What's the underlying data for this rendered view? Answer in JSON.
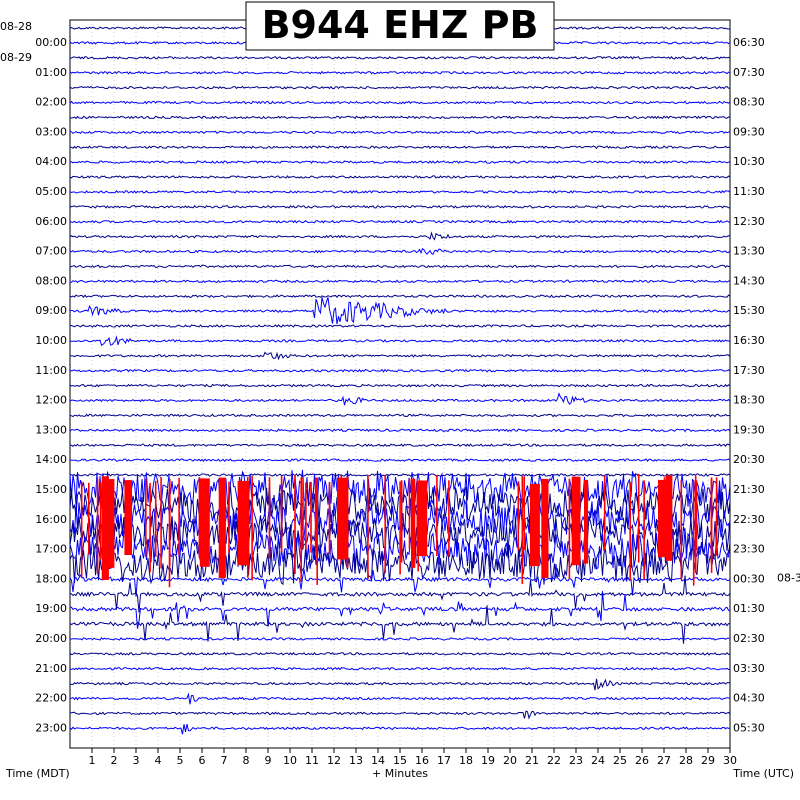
{
  "chart_data": {
    "type": "line",
    "title": "B944 EHZ PB",
    "xlabel": "+ Minutes",
    "left_axis_label": "Time (MDT)",
    "right_axis_label": "Time (UTC)",
    "xlim": [
      0,
      30
    ],
    "x_ticks": [
      "1",
      "2",
      "3",
      "4",
      "5",
      "6",
      "7",
      "8",
      "9",
      "10",
      "11",
      "12",
      "13",
      "14",
      "15",
      "16",
      "17",
      "18",
      "19",
      "20",
      "21",
      "22",
      "23",
      "24",
      "25",
      "26",
      "27",
      "28",
      "29",
      "30"
    ],
    "rows_per_hour": 2,
    "left_dates": [
      {
        "row": 0,
        "text": "08-28"
      },
      {
        "row": 1,
        "text": "08-29"
      }
    ],
    "right_dates": [
      {
        "row": 37,
        "text": "08-3"
      }
    ],
    "left_hours": [
      "00:00",
      "01:00",
      "02:00",
      "03:00",
      "04:00",
      "05:00",
      "06:00",
      "07:00",
      "08:00",
      "09:00",
      "10:00",
      "11:00",
      "12:00",
      "13:00",
      "14:00",
      "15:00",
      "16:00",
      "17:00",
      "18:00",
      "19:00",
      "20:00",
      "21:00",
      "22:00",
      "23:00"
    ],
    "right_hours": [
      "06:30",
      "07:30",
      "08:30",
      "09:30",
      "10:30",
      "11:30",
      "12:30",
      "13:30",
      "14:30",
      "15:30",
      "16:30",
      "17:30",
      "18:30",
      "19:30",
      "20:30",
      "21:30",
      "22:30",
      "23:30",
      "00:30",
      "01:30",
      "02:30",
      "03:30",
      "04:30",
      "05:30"
    ],
    "trace_colors": [
      "#00008b",
      "#0000ff"
    ],
    "clip_color": "#ff0000",
    "events": [
      {
        "row": 19,
        "minute": 11.2,
        "amplitude": 16,
        "duration_min": 6
      },
      {
        "row": 19,
        "minute": 1.0,
        "amplitude": 5,
        "duration_min": 2
      },
      {
        "row": 21,
        "minute": 1.5,
        "amplitude": 6,
        "duration_min": 2
      },
      {
        "row": 22,
        "minute": 9.0,
        "amplitude": 5,
        "duration_min": 1.5
      },
      {
        "row": 25,
        "minute": 12.5,
        "amplitude": 5,
        "duration_min": 1.5
      },
      {
        "row": 25,
        "minute": 22.3,
        "amplitude": 7,
        "duration_min": 1.5
      },
      {
        "row": 14,
        "minute": 16.5,
        "amplitude": 4,
        "duration_min": 1.5
      },
      {
        "row": 15,
        "minute": 16.0,
        "amplitude": 4,
        "duration_min": 2
      },
      {
        "row": 31,
        "minute": 22.3,
        "amplitude": 6,
        "duration_min": 1
      },
      {
        "row": 44,
        "minute": 24.0,
        "amplitude": 6,
        "duration_min": 1
      },
      {
        "row": 45,
        "minute": 5.5,
        "amplitude": 6,
        "duration_min": 0.5
      },
      {
        "row": 46,
        "minute": 20.8,
        "amplitude": 6,
        "duration_min": 0.5
      },
      {
        "row": 47,
        "minute": 5.2,
        "amplitude": 6,
        "duration_min": 0.5
      }
    ],
    "active_rows": [
      31,
      32,
      33,
      34,
      35,
      36
    ],
    "aftershock_rows": [
      37,
      38,
      39,
      40
    ]
  }
}
